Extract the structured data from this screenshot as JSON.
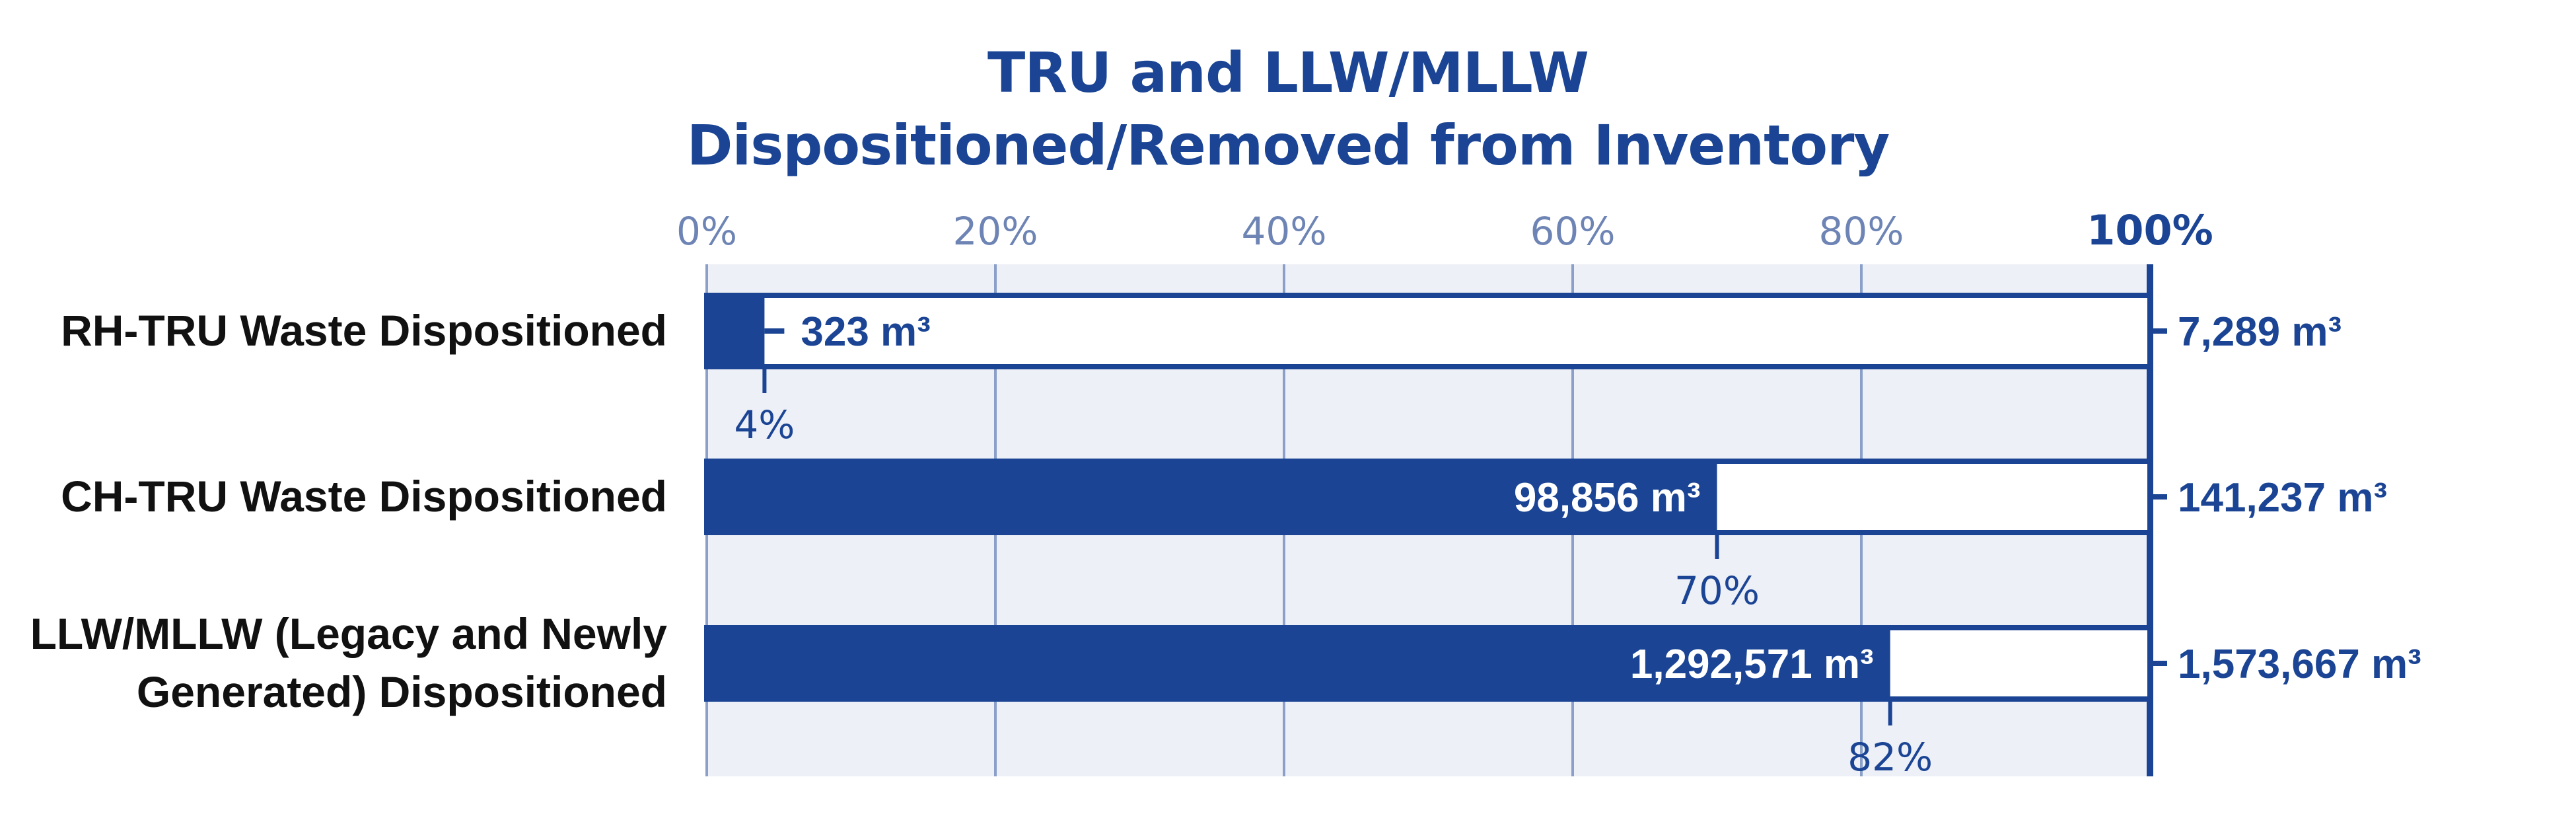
{
  "chart_data": {
    "type": "bar",
    "orientation": "horizontal",
    "title_lines": [
      "TRU and LLW/MLLW",
      "Dispositioned/Removed from Inventory"
    ],
    "xlabel": "",
    "ylabel": "",
    "xlim": [
      0,
      100
    ],
    "x_ticks": [
      {
        "value": 0,
        "label": "0%"
      },
      {
        "value": 20,
        "label": "20%"
      },
      {
        "value": 40,
        "label": "40%"
      },
      {
        "value": 60,
        "label": "60%"
      },
      {
        "value": 80,
        "label": "80%"
      },
      {
        "value": 100,
        "label": "100%"
      }
    ],
    "grid": true,
    "categories": [
      [
        "RH-TRU Waste Dispositioned"
      ],
      [
        "CH-TRU Waste Dispositioned"
      ],
      [
        "LLW/MLLW (Legacy and Newly",
        "Generated) Dispositioned"
      ]
    ],
    "bars": [
      {
        "percent": 4,
        "percent_label": "4%",
        "dispositioned": 323,
        "dispositioned_label": "323 m³",
        "total": 7289,
        "total_label": "7,289 m³"
      },
      {
        "percent": 70,
        "percent_label": "70%",
        "dispositioned": 98856,
        "dispositioned_label": "98,856 m³",
        "total": 141237,
        "total_label": "141,237 m³"
      },
      {
        "percent": 82,
        "percent_label": "82%",
        "dispositioned": 1292571,
        "dispositioned_label": "1,292,571 m³",
        "total": 1573667,
        "total_label": "1,573,667 m³"
      }
    ],
    "colors": {
      "bar": "#1b4594",
      "grid": "#8aa0c8",
      "plot_bg": "#eef0f7",
      "tick_label": "#6d84b4"
    }
  }
}
